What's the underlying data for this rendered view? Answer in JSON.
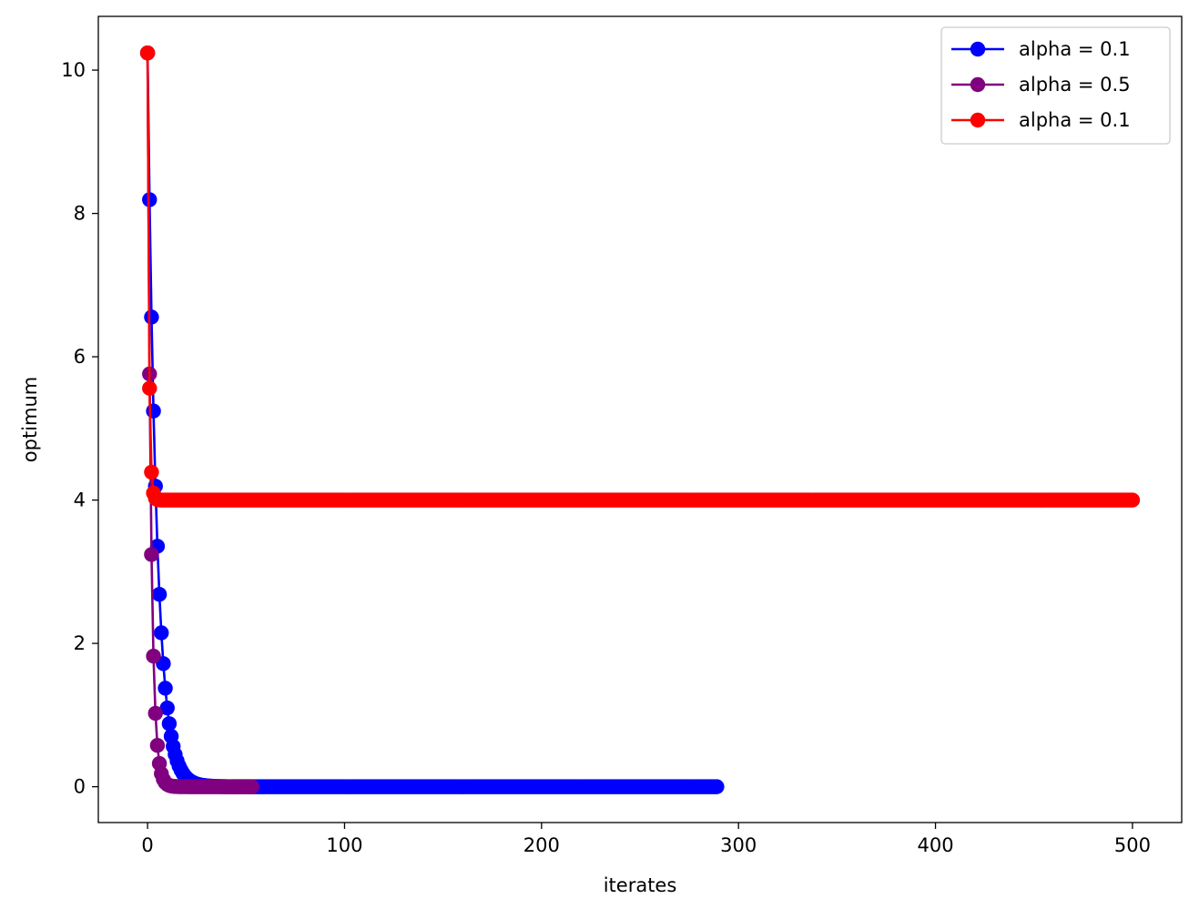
{
  "chart_data": {
    "type": "line",
    "title": "",
    "xlabel": "iterates",
    "ylabel": "optimum",
    "xlim": [
      -25,
      525
    ],
    "ylim": [
      -0.5,
      10.75
    ],
    "xticks": [
      0,
      100,
      200,
      300,
      400,
      500
    ],
    "yticks": [
      0,
      2,
      4,
      6,
      8,
      10
    ],
    "xtick_labels": [
      "0",
      "100",
      "200",
      "300",
      "400",
      "500"
    ],
    "ytick_labels": [
      "0",
      "2",
      "4",
      "6",
      "8",
      "10"
    ],
    "grid": false,
    "legend": {
      "position": "top-right"
    },
    "series": [
      {
        "name": "alpha = 0.1",
        "color": "#0000ff",
        "marker": "circle",
        "model": {
          "kind": "geometric",
          "start": 10.24,
          "ratio": 0.8,
          "offset": 0,
          "n_points": 290
        }
      },
      {
        "name": "alpha = 0.5",
        "color": "#800080",
        "marker": "circle",
        "model": {
          "kind": "geometric",
          "start": 10.24,
          "ratio": 0.5625,
          "offset": 0,
          "n_points": 54
        }
      },
      {
        "name": "alpha = 0.1",
        "color": "#ff0000",
        "marker": "circle",
        "model": {
          "kind": "geometric",
          "start": 10.24,
          "ratio": 0.25,
          "offset": 4.0,
          "n_points": 501
        }
      }
    ]
  }
}
